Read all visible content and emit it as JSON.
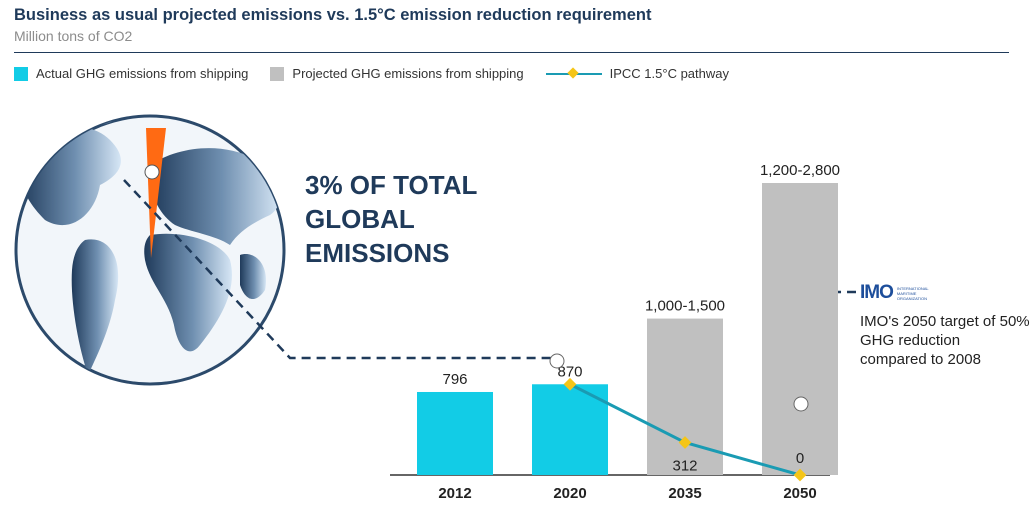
{
  "header": {
    "title": "Business as usual projected emissions vs. 1.5°C emission reduction requirement",
    "subtitle": "Million tons of CO2"
  },
  "legend": {
    "actual": "Actual GHG emissions from shipping",
    "projected": "Projected GHG emissions from shipping",
    "ipcc": "IPCC 1.5°C pathway"
  },
  "callout": {
    "line1": "3% OF TOTAL",
    "line2": "GLOBAL",
    "line3": "EMISSIONS"
  },
  "imo": {
    "logo_text": "IMO",
    "logo_small": "INTERNATIONAL MARITIME ORGANIZATION",
    "note": "IMO's 2050 target of 50% GHG reduction compared to 2008"
  },
  "colors": {
    "actual": "#12cce6",
    "projected": "#c0c0c0",
    "ipcc_line": "#1a9bb3",
    "ipcc_marker": "#f5c518",
    "dark_navy": "#1f3a5a",
    "wedge": "#ff6a13"
  },
  "chart_data": {
    "type": "bar",
    "categories": [
      "2012",
      "2020",
      "2035",
      "2050"
    ],
    "series": [
      {
        "name": "Actual GHG emissions from shipping",
        "type": "bar",
        "values": [
          796,
          870,
          null,
          null
        ],
        "labels": [
          "796",
          "870",
          "",
          ""
        ]
      },
      {
        "name": "Projected GHG emissions from shipping",
        "type": "bar",
        "values": [
          null,
          null,
          1500,
          2800
        ],
        "labels": [
          "",
          "",
          "1,000-1,500",
          "1,200-2,800"
        ]
      },
      {
        "name": "IPCC 1.5°C pathway",
        "type": "line",
        "values": [
          null,
          870,
          312,
          0
        ],
        "labels": [
          "",
          "",
          "312",
          "0"
        ]
      }
    ],
    "ylim": [
      0,
      2800
    ],
    "grid": false,
    "legend_position": "top-left"
  }
}
